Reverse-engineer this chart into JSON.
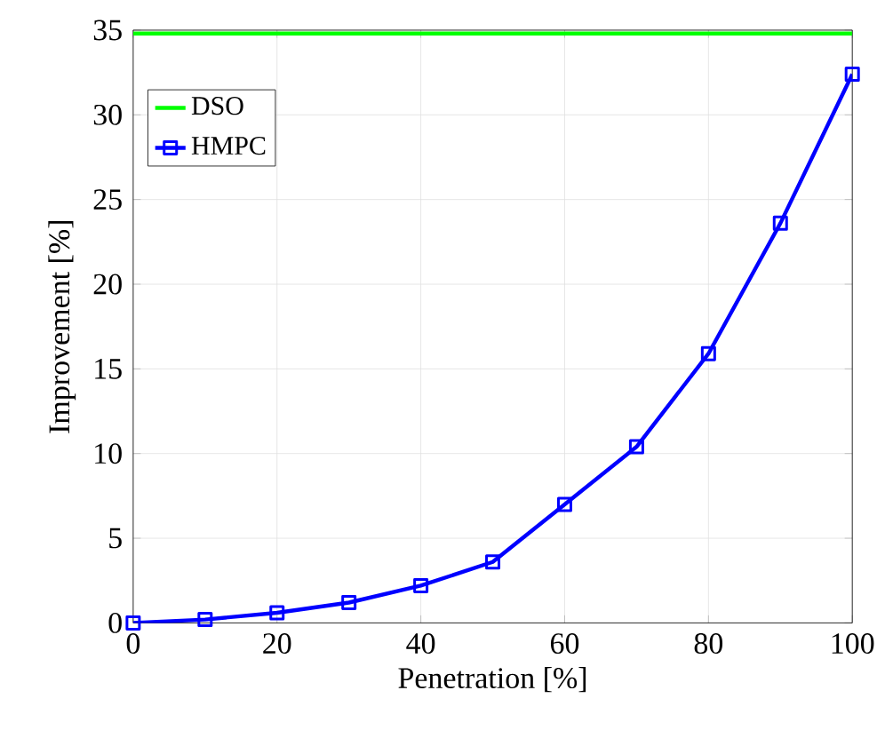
{
  "chart_data": {
    "type": "line",
    "xlabel": "Penetration [%]",
    "ylabel": "Improvement [%]",
    "x": [
      0,
      10,
      20,
      30,
      40,
      50,
      60,
      70,
      80,
      90,
      100
    ],
    "series": [
      {
        "name": "DSO",
        "color": "#00ff00",
        "values": [
          34.8,
          34.8,
          34.8,
          34.8,
          34.8,
          34.8,
          34.8,
          34.8,
          34.8,
          34.8,
          34.8
        ],
        "marker": "none"
      },
      {
        "name": "HMPC",
        "color": "#0000ff",
        "values": [
          0,
          0.2,
          0.6,
          1.2,
          2.2,
          3.6,
          7.0,
          10.4,
          15.9,
          23.6,
          32.4
        ],
        "marker": "square"
      }
    ],
    "xlim": [
      0,
      100
    ],
    "ylim": [
      0,
      35
    ],
    "xticks": [
      0,
      20,
      40,
      60,
      80,
      100
    ],
    "yticks": [
      0,
      5,
      10,
      15,
      20,
      25,
      30,
      35
    ],
    "grid": true,
    "legend": "top left"
  }
}
